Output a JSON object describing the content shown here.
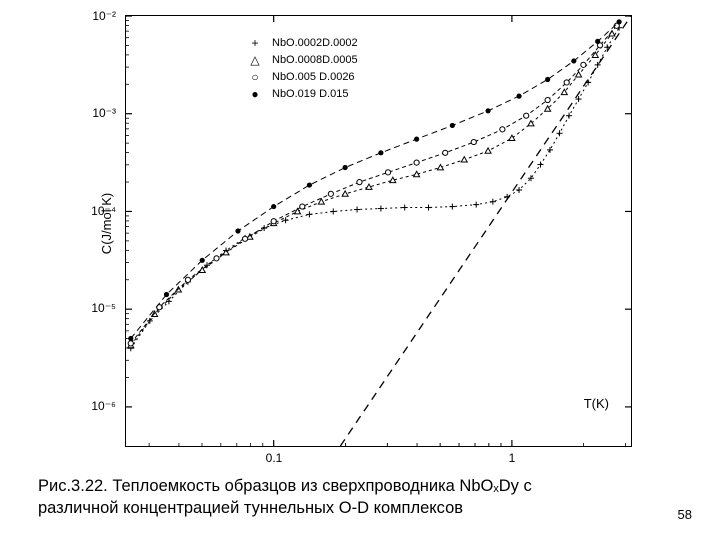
{
  "chart": {
    "type": "scatter-line-loglog",
    "background_color": "#ffffff",
    "border_color": "#000000",
    "axis": {
      "xlabel": "T(K)",
      "ylabel": "C(J/mol K)",
      "xlog": true,
      "ylog": true,
      "xlim_log10": [
        -1.62,
        0.5
      ],
      "ylim_log10": [
        -6.4,
        -2.0
      ],
      "xticks": [
        {
          "log10v": -1.0,
          "label": "0.1"
        },
        {
          "log10v": 0.0,
          "label": "1"
        }
      ],
      "yticks": [
        {
          "log10v": -6.0,
          "label": "10⁻⁶"
        },
        {
          "log10v": -5.0,
          "label": "10⁻⁵"
        },
        {
          "log10v": -4.0,
          "label": "10⁻⁴"
        },
        {
          "log10v": -3.0,
          "label": "10⁻³"
        },
        {
          "log10v": -2.0,
          "label": "10⁻²"
        }
      ],
      "label_fontsize": 13,
      "tick_fontsize": 12
    },
    "legend": {
      "position": "top-left-inset",
      "fontsize": 11,
      "items": [
        {
          "marker": "+",
          "label": "NbO.0002D.0002"
        },
        {
          "marker": "△",
          "label": "NbO.0008D.0005"
        },
        {
          "marker": "○",
          "label": "NbO.005 D.0026"
        },
        {
          "marker": "●",
          "label": "NbO.019 D.015"
        }
      ]
    },
    "series": [
      {
        "name": "plus",
        "marker": "+",
        "dash": "2,3",
        "color": "#000000",
        "points_log10": [
          [
            -1.6,
            -5.4
          ],
          [
            -1.52,
            -5.12
          ],
          [
            -1.44,
            -4.92
          ],
          [
            -1.36,
            -4.72
          ],
          [
            -1.28,
            -4.55
          ],
          [
            -1.2,
            -4.4
          ],
          [
            -1.12,
            -4.27
          ],
          [
            -1.04,
            -4.17
          ],
          [
            -0.95,
            -4.09
          ],
          [
            -0.85,
            -4.03
          ],
          [
            -0.75,
            -4.0
          ],
          [
            -0.65,
            -3.98
          ],
          [
            -0.55,
            -3.97
          ],
          [
            -0.45,
            -3.96
          ],
          [
            -0.35,
            -3.96
          ],
          [
            -0.25,
            -3.95
          ],
          [
            -0.15,
            -3.93
          ],
          [
            -0.08,
            -3.9
          ],
          [
            -0.02,
            -3.85
          ],
          [
            0.03,
            -3.78
          ],
          [
            0.08,
            -3.66
          ],
          [
            0.12,
            -3.52
          ],
          [
            0.16,
            -3.37
          ],
          [
            0.2,
            -3.2
          ],
          [
            0.24,
            -3.02
          ],
          [
            0.28,
            -2.85
          ],
          [
            0.32,
            -2.68
          ],
          [
            0.36,
            -2.5
          ],
          [
            0.4,
            -2.32
          ],
          [
            0.45,
            -2.12
          ]
        ]
      },
      {
        "name": "triangle",
        "marker": "△",
        "dash": "3,3",
        "color": "#000000",
        "points_log10": [
          [
            -1.6,
            -5.37
          ],
          [
            -1.5,
            -5.05
          ],
          [
            -1.4,
            -4.8
          ],
          [
            -1.3,
            -4.6
          ],
          [
            -1.2,
            -4.42
          ],
          [
            -1.1,
            -4.26
          ],
          [
            -1.0,
            -4.12
          ],
          [
            -0.9,
            -4.0
          ],
          [
            -0.8,
            -3.9
          ],
          [
            -0.7,
            -3.82
          ],
          [
            -0.6,
            -3.75
          ],
          [
            -0.5,
            -3.68
          ],
          [
            -0.4,
            -3.62
          ],
          [
            -0.3,
            -3.55
          ],
          [
            -0.2,
            -3.47
          ],
          [
            -0.1,
            -3.38
          ],
          [
            0.0,
            -3.25
          ],
          [
            0.08,
            -3.1
          ],
          [
            0.15,
            -2.95
          ],
          [
            0.22,
            -2.78
          ],
          [
            0.28,
            -2.6
          ],
          [
            0.35,
            -2.4
          ],
          [
            0.42,
            -2.18
          ]
        ]
      },
      {
        "name": "circle",
        "marker": "○",
        "dash": "4,3",
        "color": "#000000",
        "points_log10": [
          [
            -1.6,
            -5.35
          ],
          [
            -1.48,
            -4.98
          ],
          [
            -1.36,
            -4.7
          ],
          [
            -1.24,
            -4.48
          ],
          [
            -1.12,
            -4.28
          ],
          [
            -1.0,
            -4.1
          ],
          [
            -0.88,
            -3.95
          ],
          [
            -0.76,
            -3.82
          ],
          [
            -0.64,
            -3.7
          ],
          [
            -0.52,
            -3.6
          ],
          [
            -0.4,
            -3.5
          ],
          [
            -0.28,
            -3.4
          ],
          [
            -0.16,
            -3.29
          ],
          [
            -0.04,
            -3.16
          ],
          [
            0.06,
            -3.02
          ],
          [
            0.15,
            -2.86
          ],
          [
            0.23,
            -2.68
          ],
          [
            0.3,
            -2.5
          ],
          [
            0.37,
            -2.3
          ],
          [
            0.44,
            -2.1
          ]
        ]
      },
      {
        "name": "filled",
        "marker": "●",
        "dash": "6,4",
        "color": "#000000",
        "points_log10": [
          [
            -1.6,
            -5.3
          ],
          [
            -1.45,
            -4.85
          ],
          [
            -1.3,
            -4.5
          ],
          [
            -1.15,
            -4.2
          ],
          [
            -1.0,
            -3.95
          ],
          [
            -0.85,
            -3.73
          ],
          [
            -0.7,
            -3.55
          ],
          [
            -0.55,
            -3.4
          ],
          [
            -0.4,
            -3.26
          ],
          [
            -0.25,
            -3.12
          ],
          [
            -0.1,
            -2.97
          ],
          [
            0.03,
            -2.82
          ],
          [
            0.15,
            -2.65
          ],
          [
            0.26,
            -2.46
          ],
          [
            0.36,
            -2.26
          ],
          [
            0.45,
            -2.06
          ]
        ]
      }
    ],
    "reference_line": {
      "dash": "8,6",
      "color": "#000000",
      "width": 1.3,
      "p1_log10": [
        -0.72,
        -6.4
      ],
      "p2_log10": [
        0.5,
        -2.0
      ]
    }
  },
  "caption": {
    "line1": "Рис.3.22. Теплоемкость образцов из сверхпроводника NbOₓDy с",
    "line2": "различной концентрацией туннельных O-D комплексов",
    "fontsize": 16.5
  },
  "page_number": "58"
}
